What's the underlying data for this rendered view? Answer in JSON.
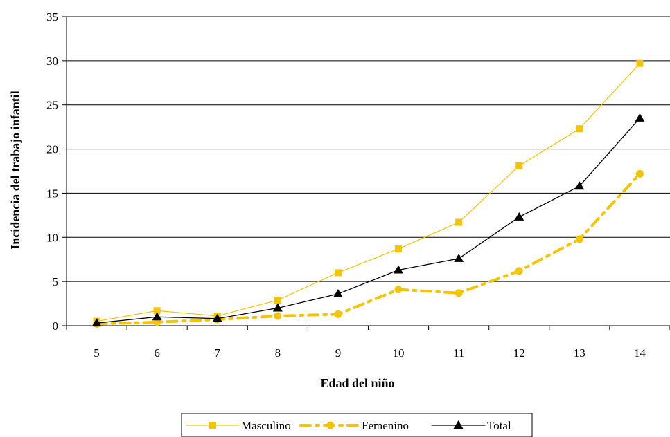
{
  "chart_data": {
    "type": "line",
    "title": "",
    "xlabel": "Edad del niño",
    "ylabel": "Incidencia del trabajo infantil",
    "x": [
      5,
      6,
      7,
      8,
      9,
      10,
      11,
      12,
      13,
      14
    ],
    "ylim": [
      0,
      35
    ],
    "yticks": [
      0,
      5,
      10,
      15,
      20,
      25,
      30,
      35
    ],
    "grid": "horizontal",
    "legend": "bottom",
    "series": [
      {
        "name": "Masculino",
        "values": [
          0.5,
          1.7,
          1.1,
          2.9,
          6.0,
          8.7,
          11.7,
          18.1,
          22.3,
          29.7
        ],
        "color": "#F5C400",
        "marker": "square",
        "style": "solid"
      },
      {
        "name": "Femenino",
        "values": [
          0.2,
          0.4,
          0.7,
          1.1,
          1.3,
          4.1,
          3.7,
          6.2,
          9.8,
          17.2
        ],
        "color": "#F5C400",
        "marker": "circle",
        "style": "dashdot"
      },
      {
        "name": "Total",
        "values": [
          0.3,
          1.0,
          0.8,
          2.0,
          3.6,
          6.3,
          7.6,
          12.3,
          15.8,
          23.5
        ],
        "color": "#000000",
        "marker": "triangle",
        "style": "solid"
      }
    ]
  }
}
